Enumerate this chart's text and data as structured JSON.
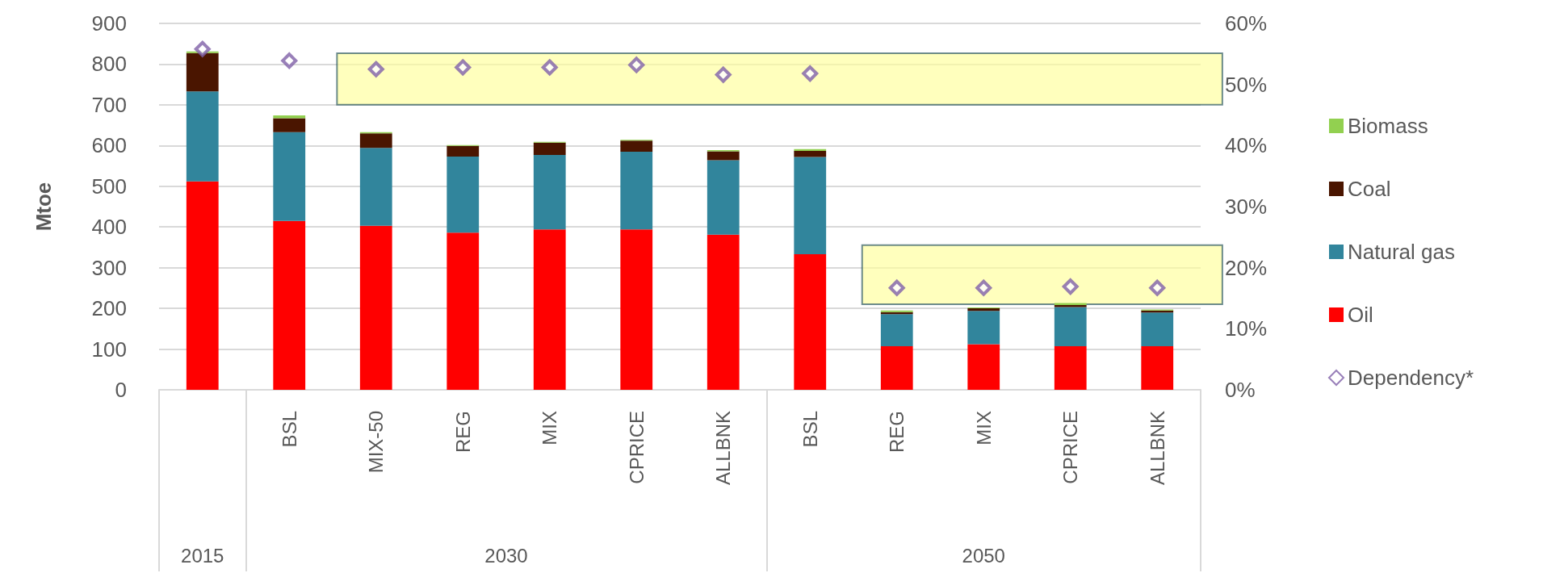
{
  "chart_data": {
    "type": "bar",
    "stacked": true,
    "ylabel": "Mtoe",
    "categories": [
      null,
      "BSL",
      "MIX-50",
      "REG",
      "MIX",
      "CPRICE",
      "ALLBNK",
      "BSL",
      "REG",
      "MIX",
      "CPRICE",
      "ALLBNK"
    ],
    "annotations": [
      "2015",
      "2030",
      "2050"
    ],
    "series": [
      {
        "name": "Oil",
        "color": "#ff0000",
        "values": [
          512,
          415,
          403,
          386,
          394,
          394,
          381,
          333,
          107,
          112,
          107,
          107
        ]
      },
      {
        "name": "Natural gas",
        "color": "#31859c",
        "values": [
          221,
          218,
          191,
          187,
          183,
          191,
          183,
          239,
          79,
          82,
          96,
          83
        ]
      },
      {
        "name": "Coal",
        "color": "#4a1500",
        "values": [
          94,
          34,
          36,
          26,
          30,
          27,
          22,
          15,
          5,
          6,
          5,
          5
        ]
      },
      {
        "name": "Biomass",
        "color": "#92d050",
        "values": [
          4,
          7,
          3,
          2,
          2,
          2,
          3,
          4,
          4,
          2,
          5,
          2
        ]
      },
      {
        "name": "Dependency*",
        "type": "scatter",
        "axis": "y2",
        "marker": "diamond",
        "color": "#7f60a8",
        "values": [
          55.8,
          53.9,
          52.5,
          52.8,
          52.8,
          53.2,
          51.6,
          51.8,
          16.7,
          16.7,
          16.9,
          16.7
        ]
      }
    ],
    "ylim": [
      0,
      900
    ],
    "yticks": [
      0,
      100,
      200,
      300,
      400,
      500,
      600,
      700,
      800,
      900
    ],
    "y2lim": [
      0,
      60
    ],
    "y2ticks": [
      {
        "value": 0,
        "label": "0%"
      },
      {
        "value": 10,
        "label": "10%"
      },
      {
        "value": 20,
        "label": "20%"
      },
      {
        "value": 30,
        "label": "30%"
      },
      {
        "value": 40,
        "label": "40%"
      },
      {
        "value": 50,
        "label": "50%"
      },
      {
        "value": 60,
        "label": "60%"
      }
    ],
    "bands": [
      {
        "axis": "y2",
        "from": 46.7,
        "to": 55.1,
        "color": "#ffff99"
      },
      {
        "axis": "y2",
        "from": 14.0,
        "to": 23.7,
        "color": "#ffff99"
      }
    ],
    "grid": "y",
    "legend": "right"
  }
}
